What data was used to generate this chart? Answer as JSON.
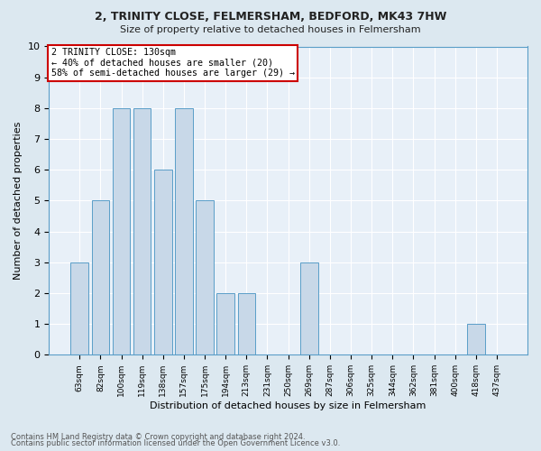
{
  "title1": "2, TRINITY CLOSE, FELMERSHAM, BEDFORD, MK43 7HW",
  "title2": "Size of property relative to detached houses in Felmersham",
  "xlabel": "Distribution of detached houses by size in Felmersham",
  "ylabel": "Number of detached properties",
  "footnote1": "Contains HM Land Registry data © Crown copyright and database right 2024.",
  "footnote2": "Contains public sector information licensed under the Open Government Licence v3.0.",
  "categories": [
    "63sqm",
    "82sqm",
    "100sqm",
    "119sqm",
    "138sqm",
    "157sqm",
    "175sqm",
    "194sqm",
    "213sqm",
    "231sqm",
    "250sqm",
    "269sqm",
    "287sqm",
    "306sqm",
    "325sqm",
    "344sqm",
    "362sqm",
    "381sqm",
    "400sqm",
    "418sqm",
    "437sqm"
  ],
  "values": [
    3,
    5,
    8,
    8,
    6,
    8,
    5,
    2,
    2,
    0,
    0,
    3,
    0,
    0,
    0,
    0,
    0,
    0,
    0,
    1,
    0
  ],
  "bar_color": "#c8d8e8",
  "bar_edge_color": "#5a9ec8",
  "annotation_text": "2 TRINITY CLOSE: 130sqm\n← 40% of detached houses are smaller (20)\n58% of semi-detached houses are larger (29) →",
  "annotation_box_color": "#ffffff",
  "annotation_box_edge_color": "#cc0000",
  "bg_color": "#dce8f0",
  "plot_bg_color": "#e8f0f8",
  "grid_color": "#ffffff",
  "ylim": [
    0,
    10
  ],
  "yticks": [
    0,
    1,
    2,
    3,
    4,
    5,
    6,
    7,
    8,
    9,
    10
  ]
}
